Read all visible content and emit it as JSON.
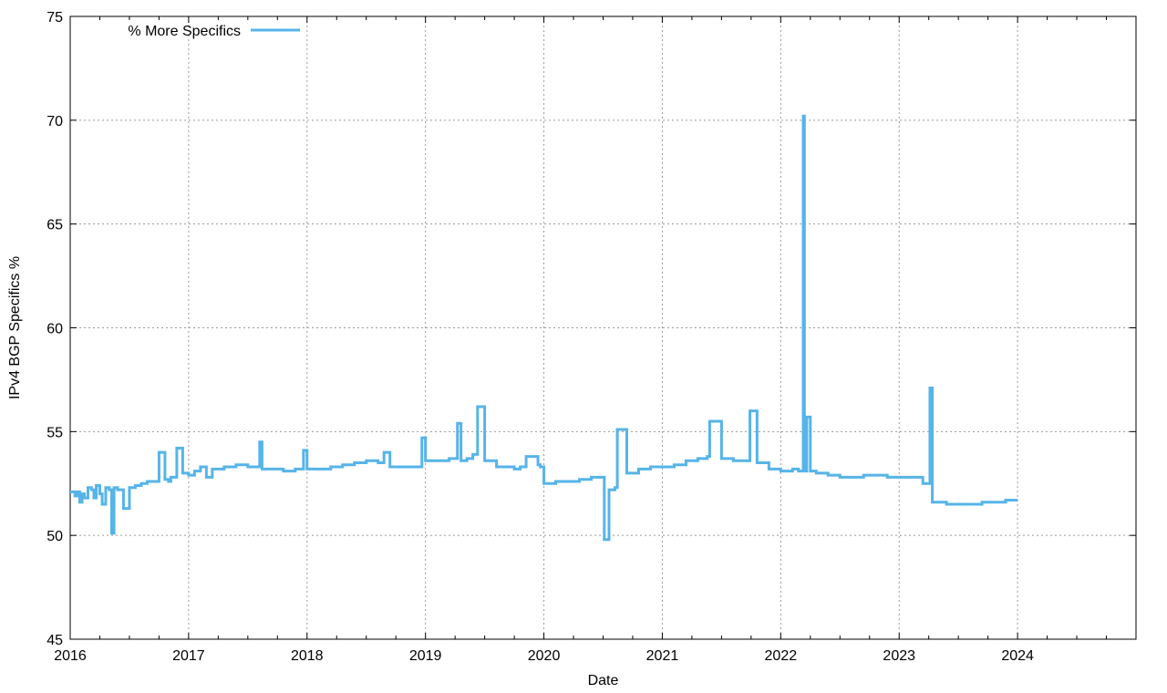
{
  "chart_data": {
    "type": "line",
    "title": "",
    "xlabel": "Date",
    "ylabel": "IPv4 BGP Specifics %",
    "xlim": [
      2016.0,
      2025.0
    ],
    "ylim": [
      45,
      75
    ],
    "x_ticks": [
      2016,
      2017,
      2018,
      2019,
      2020,
      2021,
      2022,
      2023,
      2024
    ],
    "x_tick_labels": [
      "2016",
      "2017",
      "2018",
      "2019",
      "2020",
      "2021",
      "2022",
      "2023",
      "2024"
    ],
    "y_ticks": [
      45,
      50,
      55,
      60,
      65,
      70,
      75
    ],
    "y_tick_labels": [
      "45",
      "50",
      "55",
      "60",
      "65",
      "70",
      "75"
    ],
    "grid": true,
    "legend_position": "top-left",
    "series": [
      {
        "name": "% More Specifics",
        "color": "#56b4e9",
        "x": [
          2016.0,
          2016.04,
          2016.06,
          2016.08,
          2016.1,
          2016.12,
          2016.15,
          2016.18,
          2016.2,
          2016.22,
          2016.25,
          2016.27,
          2016.3,
          2016.33,
          2016.35,
          2016.37,
          2016.4,
          2016.43,
          2016.45,
          2016.5,
          2016.55,
          2016.6,
          2016.65,
          2016.7,
          2016.75,
          2016.8,
          2016.83,
          2016.85,
          2016.9,
          2016.95,
          2017.0,
          2017.05,
          2017.1,
          2017.15,
          2017.2,
          2017.3,
          2017.4,
          2017.5,
          2017.6,
          2017.62,
          2017.7,
          2017.8,
          2017.9,
          2017.97,
          2018.0,
          2018.1,
          2018.2,
          2018.3,
          2018.4,
          2018.5,
          2018.6,
          2018.65,
          2018.7,
          2018.8,
          2018.9,
          2018.97,
          2019.0,
          2019.1,
          2019.2,
          2019.27,
          2019.3,
          2019.35,
          2019.4,
          2019.44,
          2019.5,
          2019.6,
          2019.7,
          2019.75,
          2019.8,
          2019.85,
          2019.95,
          2019.97,
          2020.0,
          2020.1,
          2020.2,
          2020.3,
          2020.4,
          2020.5,
          2020.51,
          2020.55,
          2020.6,
          2020.62,
          2020.7,
          2020.8,
          2020.9,
          2021.0,
          2021.1,
          2021.2,
          2021.3,
          2021.38,
          2021.4,
          2021.5,
          2021.6,
          2021.7,
          2021.74,
          2021.8,
          2021.9,
          2022.0,
          2022.1,
          2022.15,
          2022.19,
          2022.2,
          2022.22,
          2022.25,
          2022.3,
          2022.4,
          2022.5,
          2022.6,
          2022.7,
          2022.8,
          2022.9,
          2023.0,
          2023.1,
          2023.2,
          2023.26,
          2023.28,
          2023.3,
          2023.4,
          2023.5,
          2023.6,
          2023.7,
          2023.8,
          2023.9,
          2024.0
        ],
        "y": [
          52.1,
          51.9,
          52.1,
          51.6,
          52.0,
          51.8,
          52.3,
          52.2,
          51.8,
          52.4,
          52.0,
          51.5,
          52.3,
          52.2,
          50.1,
          52.3,
          52.2,
          52.2,
          51.3,
          52.3,
          52.4,
          52.5,
          52.6,
          52.6,
          54.0,
          52.7,
          52.6,
          52.8,
          54.2,
          53.0,
          52.9,
          53.1,
          53.3,
          52.8,
          53.2,
          53.3,
          53.4,
          53.3,
          54.5,
          53.2,
          53.2,
          53.1,
          53.2,
          54.1,
          53.2,
          53.2,
          53.3,
          53.4,
          53.5,
          53.6,
          53.5,
          54.0,
          53.3,
          53.3,
          53.3,
          54.7,
          53.6,
          53.6,
          53.7,
          55.4,
          53.6,
          53.7,
          53.9,
          56.2,
          53.6,
          53.3,
          53.3,
          53.2,
          53.3,
          53.8,
          53.4,
          53.3,
          52.5,
          52.6,
          52.6,
          52.7,
          52.8,
          52.8,
          49.8,
          52.2,
          52.3,
          55.1,
          53.0,
          53.2,
          53.3,
          53.3,
          53.4,
          53.6,
          53.7,
          53.8,
          55.5,
          53.7,
          53.6,
          53.6,
          56.0,
          53.5,
          53.2,
          53.1,
          53.2,
          53.1,
          70.2,
          53.1,
          55.7,
          53.1,
          53.0,
          52.9,
          52.8,
          52.8,
          52.9,
          52.9,
          52.8,
          52.8,
          52.8,
          52.5,
          57.1,
          51.6,
          51.6,
          51.5,
          51.5,
          51.5,
          51.6,
          51.6,
          51.7,
          51.7
        ]
      }
    ]
  }
}
